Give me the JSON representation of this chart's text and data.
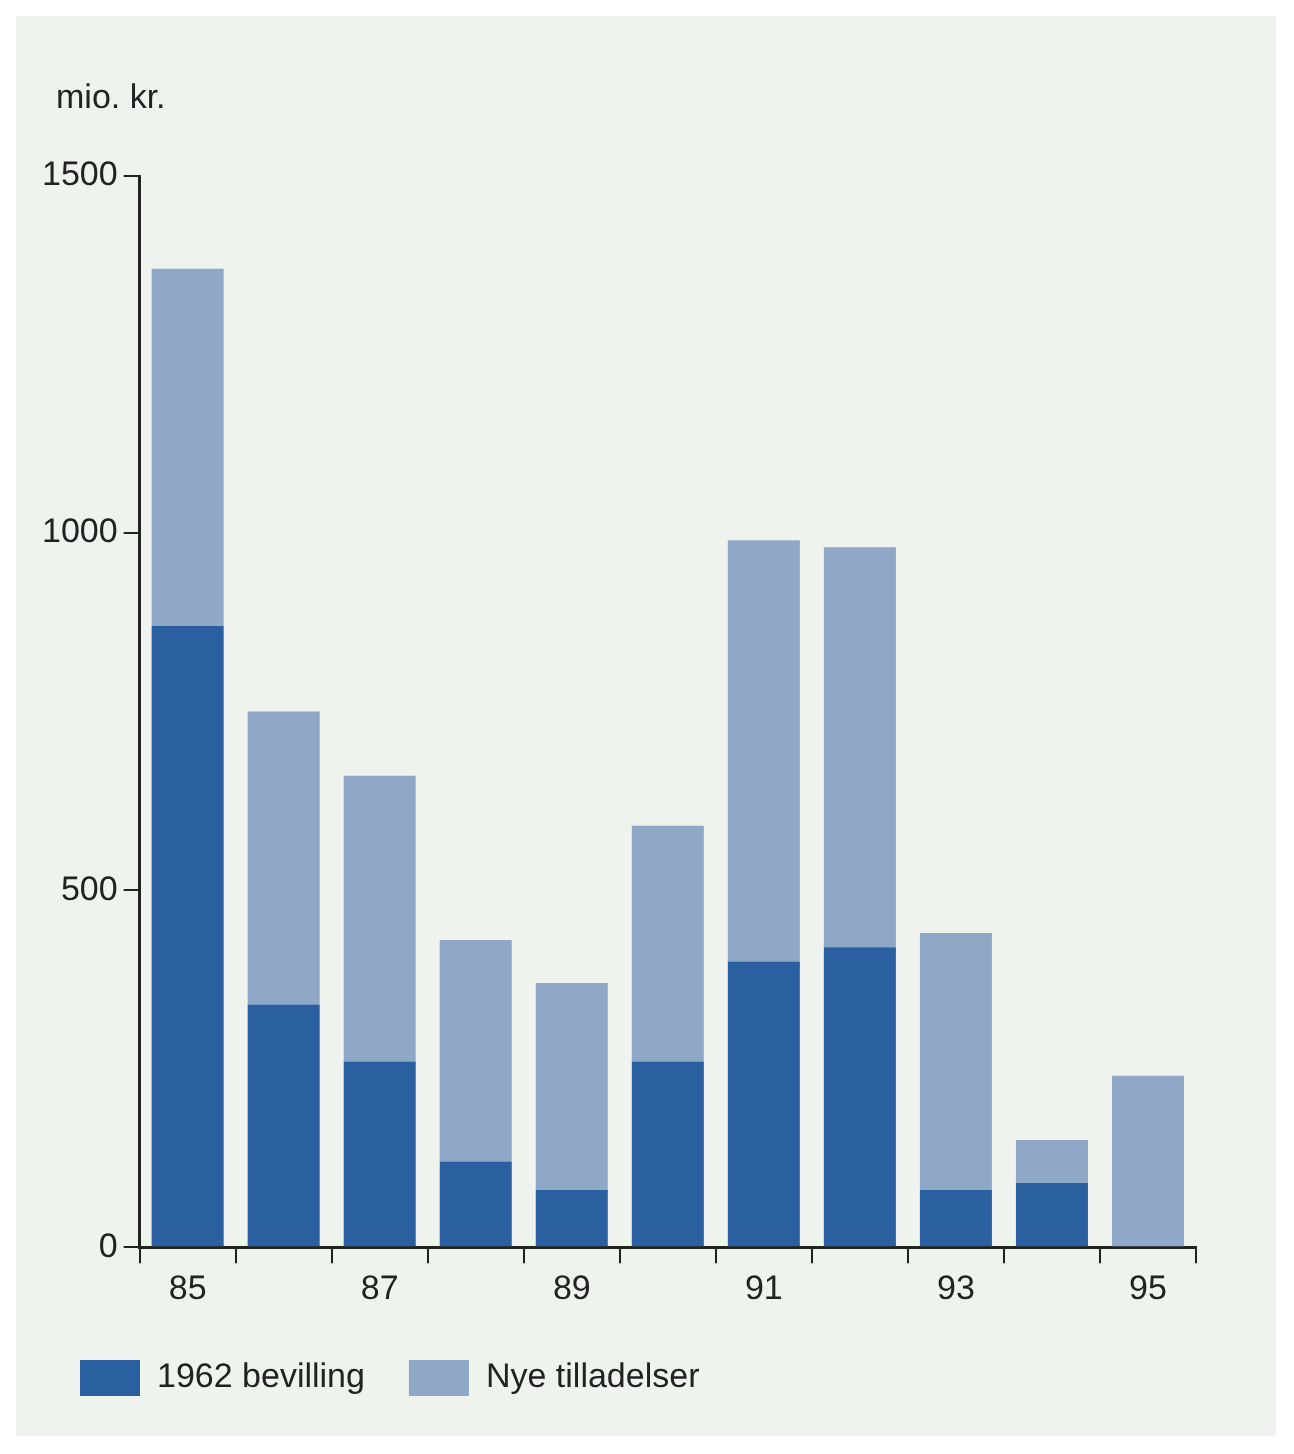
{
  "chart_data": {
    "type": "bar",
    "stacked": true,
    "ylabel": "mio. kr.",
    "categories": [
      "85",
      null,
      "87",
      null,
      "89",
      null,
      "91",
      null,
      "93",
      null,
      "95"
    ],
    "series": [
      {
        "name": "1962 bevilling",
        "color": "#2a5fa0",
        "values": [
          870,
          340,
          260,
          120,
          80,
          260,
          400,
          420,
          80,
          90,
          0
        ]
      },
      {
        "name": "Nye tilladelser",
        "color": "#8fa8c8",
        "values": [
          500,
          410,
          400,
          310,
          290,
          330,
          590,
          560,
          360,
          60,
          240
        ]
      }
    ],
    "ylim": [
      0,
      1500
    ],
    "yticks": [
      0,
      500,
      1000,
      1500
    ],
    "grid": false,
    "legend": "bottom"
  }
}
